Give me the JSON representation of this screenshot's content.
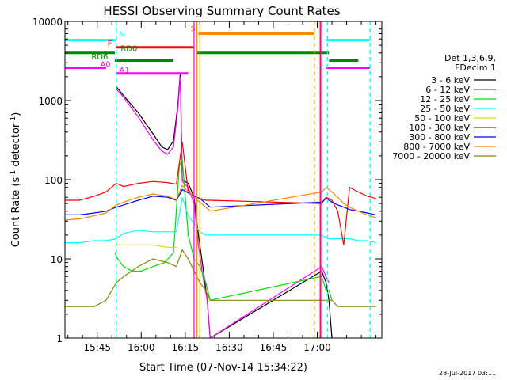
{
  "chart_data": {
    "type": "line",
    "title": "HESSI Observing Summary Count Rates",
    "xlabel": "Start Time (07-Nov-14 15:34:22)",
    "ylabel": "Count Rate (s⁻¹ detector⁻¹)",
    "ylabel_parts": {
      "main": "Count Rate (s",
      "exp1": "-1",
      "mid": " detector",
      "exp2": "-1",
      "end": ")"
    },
    "x_range_min": [
      0,
      108
    ],
    "y_range": [
      1,
      10000
    ],
    "y_scale": "log",
    "x_ticks": [
      {
        "min": 11,
        "label": "15:45"
      },
      {
        "min": 26,
        "label": "16:00"
      },
      {
        "min": 41,
        "label": "16:15"
      },
      {
        "min": 56,
        "label": "16:30"
      },
      {
        "min": 71,
        "label": "16:45"
      },
      {
        "min": 86,
        "label": "17:00"
      }
    ],
    "y_ticks": [
      {
        "value": 1,
        "label": "1"
      },
      {
        "value": 10,
        "label": "10"
      },
      {
        "value": 100,
        "label": "100"
      },
      {
        "value": 1000,
        "label": "1000"
      },
      {
        "value": 10000,
        "label": "10000"
      }
    ],
    "legend": {
      "header": [
        "Det 1,3,6,9,",
        "FDecim 1"
      ],
      "placement": "right"
    },
    "series": [
      {
        "name": "3 - 6 keV",
        "color": "#000000",
        "points": [
          [
            17.5,
            1500
          ],
          [
            20,
            1150
          ],
          [
            25,
            700
          ],
          [
            30,
            380
          ],
          [
            33,
            260
          ],
          [
            35,
            240
          ],
          [
            37,
            310
          ],
          [
            38.5,
            900
          ],
          [
            39.3,
            2200
          ],
          [
            40,
            100
          ],
          [
            42,
            90
          ],
          [
            44,
            60
          ],
          [
            45.5,
            20
          ],
          [
            47,
            8
          ],
          [
            48.5,
            3
          ],
          [
            49.5,
            1
          ],
          [
            87.5,
            7
          ],
          [
            89,
            5
          ],
          [
            90,
            3
          ],
          [
            91,
            1
          ]
        ]
      },
      {
        "name": "6 - 12 keV",
        "color": "#ff00ff",
        "points": [
          [
            17.5,
            1400
          ],
          [
            20,
            1100
          ],
          [
            25,
            620
          ],
          [
            30,
            320
          ],
          [
            33,
            230
          ],
          [
            35,
            210
          ],
          [
            37,
            260
          ],
          [
            38.5,
            800
          ],
          [
            39.3,
            2000
          ],
          [
            40,
            95
          ],
          [
            42,
            80
          ],
          [
            44,
            50
          ],
          [
            45.5,
            15
          ],
          [
            47,
            6
          ],
          [
            48.5,
            3
          ],
          [
            49.5,
            1
          ],
          [
            87.5,
            8
          ],
          [
            89,
            6
          ],
          [
            90,
            5
          ]
        ]
      },
      {
        "name": "12 - 25 keV",
        "color": "#00dd00",
        "points": [
          [
            17,
            12
          ],
          [
            18,
            10
          ],
          [
            20,
            8
          ],
          [
            23,
            7
          ],
          [
            26,
            7
          ],
          [
            30,
            8
          ],
          [
            34,
            9
          ],
          [
            37,
            12
          ],
          [
            39,
            150
          ],
          [
            40,
            180
          ],
          [
            41,
            60
          ],
          [
            42,
            20
          ],
          [
            44,
            10
          ],
          [
            46,
            8
          ],
          [
            48,
            5
          ],
          [
            49.5,
            3
          ],
          [
            87.5,
            6
          ],
          [
            89,
            4
          ],
          [
            90,
            4
          ],
          [
            91,
            3
          ]
        ]
      },
      {
        "name": "25 - 50 keV",
        "color": "#00ffff",
        "points": [
          [
            0,
            16
          ],
          [
            5,
            16
          ],
          [
            10,
            17
          ],
          [
            14,
            17
          ],
          [
            17.5,
            18
          ],
          [
            20,
            21
          ],
          [
            25,
            23
          ],
          [
            30,
            22
          ],
          [
            35,
            22
          ],
          [
            38,
            22
          ],
          [
            40,
            60
          ],
          [
            42,
            35
          ],
          [
            44,
            28
          ],
          [
            46,
            22
          ],
          [
            48,
            20
          ],
          [
            49.5,
            20
          ],
          [
            87.5,
            20
          ],
          [
            88.5,
            19
          ],
          [
            90,
            18
          ],
          [
            93,
            18
          ],
          [
            97,
            18
          ],
          [
            100,
            17
          ],
          [
            103,
            17
          ],
          [
            106,
            16
          ]
        ]
      },
      {
        "name": "50 - 100 keV",
        "color": "#e0e000",
        "points": [
          [
            17.5,
            15
          ],
          [
            20,
            15
          ],
          [
            25,
            15
          ],
          [
            30,
            15
          ],
          [
            35,
            14
          ],
          [
            38,
            14
          ]
        ]
      },
      {
        "name": "100 - 300 keV",
        "color": "#ff0000",
        "points": [
          [
            0,
            55
          ],
          [
            5,
            55
          ],
          [
            10,
            62
          ],
          [
            14,
            70
          ],
          [
            17.5,
            90
          ],
          [
            20,
            82
          ],
          [
            25,
            90
          ],
          [
            30,
            95
          ],
          [
            35,
            92
          ],
          [
            38,
            88
          ],
          [
            40,
            300
          ],
          [
            42,
            70
          ],
          [
            44,
            62
          ],
          [
            46,
            58
          ],
          [
            48,
            55
          ],
          [
            49.5,
            55
          ],
          [
            87.5,
            50
          ],
          [
            89,
            60
          ],
          [
            91,
            55
          ],
          [
            93,
            40
          ],
          [
            95,
            15
          ],
          [
            97,
            80
          ],
          [
            100,
            70
          ],
          [
            103,
            62
          ],
          [
            106,
            58
          ]
        ]
      },
      {
        "name": "300 - 800 keV",
        "color": "#0000ff",
        "points": [
          [
            0,
            36
          ],
          [
            5,
            36
          ],
          [
            10,
            38
          ],
          [
            14,
            40
          ],
          [
            17.5,
            45
          ],
          [
            20,
            48
          ],
          [
            25,
            55
          ],
          [
            30,
            62
          ],
          [
            35,
            60
          ],
          [
            38,
            55
          ],
          [
            40,
            75
          ],
          [
            42,
            68
          ],
          [
            44,
            62
          ],
          [
            46,
            58
          ],
          [
            48,
            50
          ],
          [
            49.5,
            45
          ],
          [
            87.5,
            52
          ],
          [
            89,
            58
          ],
          [
            91,
            52
          ],
          [
            93,
            48
          ],
          [
            95,
            45
          ],
          [
            97,
            42
          ],
          [
            100,
            40
          ],
          [
            103,
            38
          ],
          [
            106,
            36
          ]
        ]
      },
      {
        "name": "800 - 7000 keV",
        "color": "#ff8800",
        "points": [
          [
            0,
            31
          ],
          [
            5,
            32
          ],
          [
            10,
            35
          ],
          [
            14,
            38
          ],
          [
            17.5,
            48
          ],
          [
            20,
            52
          ],
          [
            25,
            60
          ],
          [
            30,
            66
          ],
          [
            35,
            62
          ],
          [
            38,
            56
          ],
          [
            40,
            85
          ],
          [
            42,
            70
          ],
          [
            44,
            60
          ],
          [
            46,
            52
          ],
          [
            48,
            45
          ],
          [
            49.5,
            40
          ],
          [
            87.5,
            70
          ],
          [
            89,
            80
          ],
          [
            91,
            70
          ],
          [
            93,
            60
          ],
          [
            95,
            50
          ],
          [
            97,
            45
          ],
          [
            100,
            40
          ],
          [
            103,
            36
          ],
          [
            106,
            33
          ]
        ]
      },
      {
        "name": "7000 - 20000 keV",
        "color": "#888800",
        "points": [
          [
            0,
            2.5
          ],
          [
            5,
            2.5
          ],
          [
            10,
            2.5
          ],
          [
            14,
            3
          ],
          [
            17.5,
            5
          ],
          [
            20,
            6
          ],
          [
            25,
            8
          ],
          [
            30,
            10
          ],
          [
            35,
            9
          ],
          [
            38,
            8
          ],
          [
            40,
            13
          ],
          [
            42,
            10
          ],
          [
            44,
            7
          ],
          [
            46,
            5
          ],
          [
            48,
            4
          ],
          [
            49.5,
            3
          ],
          [
            87.5,
            3
          ],
          [
            89,
            3
          ],
          [
            91,
            3
          ],
          [
            93,
            2.5
          ],
          [
            97,
            2.5
          ],
          [
            100,
            2.5
          ],
          [
            103,
            2.5
          ],
          [
            106,
            2.5
          ]
        ]
      }
    ],
    "flags": [
      {
        "label": "N",
        "color": "#00ffff",
        "y": 5800,
        "segments": [
          [
            0,
            17.5
          ],
          [
            89,
            104
          ]
        ]
      },
      {
        "label": "F",
        "color": "#ff0000",
        "y": 4700,
        "segments": [
          [
            17.5,
            44
          ]
        ]
      },
      {
        "label": "RD0",
        "color": "#008800",
        "y": 4000,
        "segments": [
          [
            0,
            17
          ],
          [
            45,
            90
          ]
        ]
      },
      {
        "label": "RD6",
        "color": "#008800",
        "y": 3200,
        "segments": [
          [
            17,
            37
          ],
          [
            90,
            100
          ]
        ]
      },
      {
        "label": "A0",
        "color": "#ff00ff",
        "y": 2600,
        "segments": [
          [
            0,
            14
          ],
          [
            89,
            104
          ]
        ]
      },
      {
        "label": "A1",
        "color": "#ff00ff",
        "y": 2200,
        "segments": [
          [
            17.5,
            42
          ]
        ]
      },
      {
        "label": "S",
        "color": "#ff8800",
        "y": 7000,
        "segments": [
          [
            45.5,
            85
          ]
        ]
      }
    ],
    "flag_label_positions": [
      {
        "label": "N",
        "min": 18.5,
        "y": 6400
      },
      {
        "label": "F",
        "min": 14.5,
        "y": 4900
      },
      {
        "label": "RD0",
        "min": 19,
        "y": 4200
      },
      {
        "label": "RD6",
        "min": 9,
        "y": 3300
      },
      {
        "label": "A0",
        "min": 12,
        "y": 2650
      },
      {
        "label": "A1",
        "min": 18.5,
        "y": 2250
      },
      {
        "label": "S",
        "min": 42.8,
        "y": 7500
      }
    ],
    "vlines": [
      {
        "min": 17.5,
        "color": "#00ffff",
        "dashed": true
      },
      {
        "min": 44,
        "color": "#ff00ff",
        "dashed": false
      },
      {
        "min": 45,
        "color": "#ff8800",
        "dashed": false
      },
      {
        "min": 46,
        "color": "#ff8800",
        "dashed": false
      },
      {
        "min": 85,
        "color": "#ff8800",
        "dashed": true
      },
      {
        "min": 87,
        "color": "#ff0000",
        "dashed": false
      },
      {
        "min": 87.5,
        "color": "#ff00ff",
        "dashed": false
      },
      {
        "min": 89.5,
        "color": "#00ffff",
        "dashed": true
      },
      {
        "min": 104,
        "color": "#00ffff",
        "dashed": true
      }
    ],
    "datestamp": "28-Jul-2017 03:11"
  }
}
